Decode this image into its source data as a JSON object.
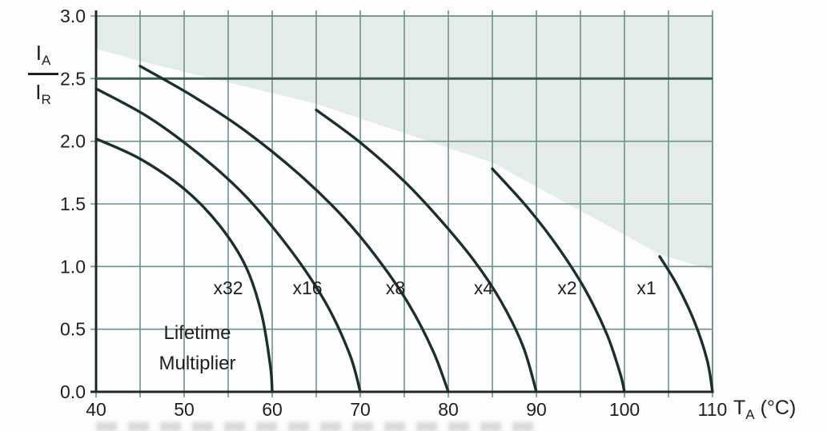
{
  "figure": {
    "background_color": "#fdfdfb"
  },
  "chart_data": {
    "type": "line",
    "title": "",
    "xlabel_parts": {
      "main": "T",
      "sub": "A",
      "unit": " (°C)"
    },
    "ylabel_parts": {
      "num_main": "I",
      "num_sub": "A",
      "den_main": "I",
      "den_sub": "R"
    },
    "xlim": [
      40,
      110
    ],
    "ylim": [
      0,
      3.0
    ],
    "x_grid_step": 5,
    "y_grid_step": 0.5,
    "grid": true,
    "x_major_ticks": [
      40,
      50,
      60,
      70,
      80,
      90,
      100,
      110
    ],
    "x_tick_labels": [
      "40",
      "50",
      "60",
      "70",
      "80",
      "90",
      "100",
      "110"
    ],
    "y_major_ticks": [
      0,
      0.5,
      1.0,
      1.5,
      2.0,
      2.5,
      3.0
    ],
    "y_tick_labels": [
      "0.0",
      "0.5",
      "1.0",
      "1.5",
      "2.0",
      "2.5",
      "3.0"
    ],
    "limit_line_y": 2.5,
    "shaded_region_boundary": [
      [
        40,
        2.74
      ],
      [
        45,
        2.64
      ],
      [
        65,
        2.3
      ],
      [
        85,
        1.83
      ],
      [
        104,
        1.1
      ],
      [
        110,
        0.97
      ]
    ],
    "annotation": {
      "lines": [
        "Lifetime",
        "Multiplier"
      ],
      "x": 51.5,
      "y_top": 0.42,
      "line_gap": 0.24
    },
    "series": [
      {
        "name": "x32",
        "end_temp": 60,
        "label": {
          "text": "x32",
          "x": 55,
          "y": 0.78
        },
        "points": [
          [
            40,
            2.02
          ],
          [
            45,
            1.86
          ],
          [
            50,
            1.62
          ],
          [
            54,
            1.33
          ],
          [
            57,
            1.0
          ],
          [
            58.8,
            0.62
          ],
          [
            59.8,
            0.2
          ],
          [
            60,
            0
          ]
        ]
      },
      {
        "name": "x16",
        "end_temp": 70,
        "label": {
          "text": "x16",
          "x": 64,
          "y": 0.78
        },
        "points": [
          [
            40,
            2.42
          ],
          [
            46,
            2.19
          ],
          [
            52,
            1.88
          ],
          [
            57,
            1.56
          ],
          [
            62,
            1.14
          ],
          [
            66,
            0.72
          ],
          [
            68.8,
            0.3
          ],
          [
            70,
            0
          ]
        ]
      },
      {
        "name": "x8",
        "end_temp": 80,
        "label": {
          "text": "x8",
          "x": 74,
          "y": 0.78
        },
        "points": [
          [
            45,
            2.6
          ],
          [
            51,
            2.36
          ],
          [
            57,
            2.08
          ],
          [
            63,
            1.74
          ],
          [
            68,
            1.4
          ],
          [
            72,
            1.06
          ],
          [
            75.5,
            0.7
          ],
          [
            78.3,
            0.32
          ],
          [
            80,
            0
          ]
        ]
      },
      {
        "name": "x4",
        "end_temp": 90,
        "label": {
          "text": "x4",
          "x": 84,
          "y": 0.78
        },
        "points": [
          [
            65,
            2.25
          ],
          [
            70,
            1.99
          ],
          [
            75,
            1.68
          ],
          [
            79,
            1.38
          ],
          [
            83,
            1.04
          ],
          [
            86,
            0.72
          ],
          [
            88.5,
            0.36
          ],
          [
            90,
            0
          ]
        ]
      },
      {
        "name": "x2",
        "end_temp": 100,
        "label": {
          "text": "x2",
          "x": 93.5,
          "y": 0.78
        },
        "points": [
          [
            85,
            1.78
          ],
          [
            89,
            1.47
          ],
          [
            92.5,
            1.15
          ],
          [
            95.5,
            0.82
          ],
          [
            98,
            0.46
          ],
          [
            99.5,
            0.15
          ],
          [
            100,
            0
          ]
        ]
      },
      {
        "name": "x1",
        "end_temp": 110,
        "label": {
          "text": "x1",
          "x": 102.5,
          "y": 0.78
        },
        "points": [
          [
            104,
            1.08
          ],
          [
            106,
            0.85
          ],
          [
            108,
            0.55
          ],
          [
            109.4,
            0.25
          ],
          [
            110,
            0
          ]
        ]
      }
    ],
    "colors": {
      "curve": "#1b2f2b",
      "grid": "#6e918c",
      "axis": "#1e2a28",
      "limit_line": "#3d5a55",
      "shading": "#e3ece7",
      "text": "#1f1f1f"
    }
  }
}
